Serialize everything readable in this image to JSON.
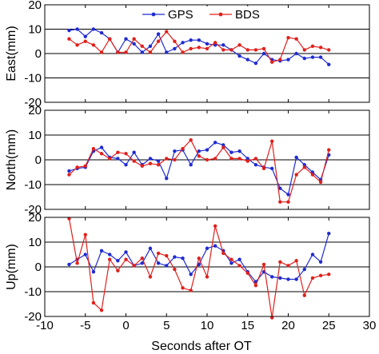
{
  "chart_data": {
    "type": "line",
    "xlabel": "Seconds after OT",
    "xlim": [
      -10,
      30
    ],
    "xticks": [
      -10,
      -5,
      0,
      5,
      10,
      15,
      20,
      25,
      30
    ],
    "legend": {
      "placement": "top-center",
      "entries": [
        {
          "name": "GPS",
          "color": "#1f2bd1"
        },
        {
          "name": "BDS",
          "color": "#e0201c"
        }
      ]
    },
    "grid": "horizontal",
    "x": [
      -7,
      -6,
      -5,
      -4,
      -3,
      -2,
      -1,
      0,
      1,
      2,
      3,
      4,
      5,
      6,
      7,
      8,
      9,
      10,
      11,
      12,
      13,
      14,
      15,
      16,
      17,
      18,
      19,
      20,
      21,
      22,
      23,
      24,
      25
    ],
    "panels": [
      {
        "ylabel": "East(mm)",
        "ylim": [
          -20,
          20
        ],
        "yticks": [
          -20,
          -10,
          0,
          10,
          20
        ],
        "series": [
          {
            "name": "GPS",
            "color": "#1f2bd1",
            "values": [
              9.5,
              10,
              7,
              10,
              8.5,
              6,
              0.5,
              6,
              4,
              0.5,
              3,
              8,
              0.5,
              2,
              4.5,
              5.5,
              5.5,
              4,
              3.5,
              3.5,
              1.5,
              -1,
              -2.5,
              -4,
              0,
              -2.5,
              -3,
              -2.5,
              0,
              -2,
              -1.5,
              -1.5,
              -4.5
            ]
          },
          {
            "name": "BDS",
            "color": "#e0201c",
            "values": [
              6,
              3.5,
              5,
              3.5,
              0.5,
              6,
              0.5,
              0.5,
              6,
              3,
              0.5,
              5,
              9,
              5,
              0.5,
              2,
              2.5,
              2,
              4.5,
              1.5,
              1.5,
              3.5,
              1.5,
              1.5,
              2,
              -3.5,
              -2.5,
              6.5,
              6,
              1.5,
              3,
              2.5,
              1.5
            ]
          }
        ]
      },
      {
        "ylabel": "North(mm)",
        "ylim": [
          -20,
          20
        ],
        "yticks": [
          -20,
          -10,
          0,
          10,
          20
        ],
        "series": [
          {
            "name": "GPS",
            "color": "#1f2bd1",
            "values": [
              -4.5,
              -3.5,
              -3,
              3.5,
              5,
              1,
              0.5,
              -2,
              3,
              -2,
              0.5,
              -0.5,
              -7.5,
              3.5,
              4,
              -2,
              3.5,
              4,
              7,
              6,
              3,
              3.5,
              0.5,
              -2,
              -3,
              -3.5,
              -11.5,
              -14,
              1,
              -2,
              -5,
              -8,
              2
            ]
          },
          {
            "name": "BDS",
            "color": "#e0201c",
            "values": [
              -6,
              -3,
              -2.5,
              4.5,
              2.5,
              0.5,
              3,
              2.5,
              -0.5,
              -2.5,
              -1.5,
              -2,
              0.5,
              0,
              4.5,
              8,
              1.5,
              0,
              0.5,
              5,
              0.5,
              0.5,
              -0.5,
              0.5,
              -3.5,
              7.5,
              -17,
              -17,
              -6,
              -3,
              -6,
              -9,
              4
            ]
          }
        ]
      },
      {
        "ylabel": "Up(mm)",
        "ylim": [
          -20,
          20
        ],
        "yticks": [
          -20,
          -10,
          0,
          10,
          20
        ],
        "series": [
          {
            "name": "GPS",
            "color": "#1f2bd1",
            "values": [
              1,
              3,
              5,
              -2,
              6.5,
              5,
              2.5,
              6,
              0.5,
              1.5,
              7.5,
              1.5,
              0.5,
              4,
              3.5,
              -3,
              1,
              7.5,
              8.5,
              6.5,
              1.5,
              3,
              -2,
              -6,
              -2,
              -4,
              -4.5,
              -5,
              -5,
              -1,
              5,
              2,
              13.5
            ]
          },
          {
            "name": "BDS",
            "color": "#e0201c",
            "values": [
              19.5,
              1.5,
              13,
              -14.5,
              -17.5,
              3,
              -1.5,
              3,
              0.5,
              3.5,
              -4,
              5.5,
              4.5,
              -1,
              -8.5,
              -9.5,
              3.5,
              -4,
              16.5,
              5.5,
              3,
              0.5,
              -2.5,
              -7.5,
              1,
              -20.5,
              2,
              0.5,
              2.5,
              -11.5,
              -4.5,
              -3.5,
              -3
            ]
          }
        ]
      }
    ]
  }
}
